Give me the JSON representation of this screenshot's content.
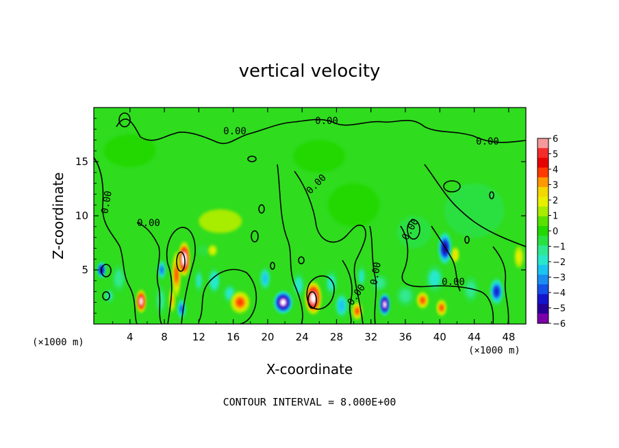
{
  "chart_data": {
    "type": "heatmap",
    "title": "vertical velocity",
    "xlabel": "X-coordinate",
    "ylabel": "Z-coordinate",
    "x_unit_label": "(×1000 m)",
    "xlim": [
      -0.2,
      50.0
    ],
    "ylim": [
      0,
      20
    ],
    "x_ticks": [
      4,
      8,
      12,
      16,
      20,
      24,
      28,
      32,
      36,
      40,
      44,
      48
    ],
    "y_ticks": [
      5,
      10,
      15
    ],
    "colorbar": {
      "min": -6,
      "max": 6,
      "tick_labels": [
        "6",
        "5",
        "4",
        "3",
        "2",
        "1",
        "0",
        "−1",
        "−2",
        "−3",
        "−4",
        "−5",
        "−6"
      ],
      "colors": [
        "#f59a9a",
        "#f32c2c",
        "#e60000",
        "#ff3a00",
        "#ff9900",
        "#f2d800",
        "#e8f000",
        "#a8ec00",
        "#5ae000",
        "#22d800",
        "#2ae040",
        "#30e890",
        "#28e8cc",
        "#1cc4f0",
        "#1a8ef0",
        "#1450e8",
        "#1414cc",
        "#260096",
        "#7a00a8"
      ]
    },
    "contour_interval": "CONTOUR INTERVAL = 8.000E+00",
    "contour_labels": [
      "0.00",
      "0.00",
      "0.00",
      "0.00",
      "0.00",
      "0.00",
      "0.00",
      "0.00",
      "0.00",
      "0.00"
    ],
    "cells": [
      {
        "x": 0.7,
        "z": 5.0,
        "w": 1.0,
        "h": 1.6,
        "v": -5.5
      },
      {
        "x": 1.6,
        "z": 2.6,
        "w": 1.1,
        "h": 1.3,
        "v": -2.2
      },
      {
        "x": 2.7,
        "z": 4.2,
        "w": 1.6,
        "h": 2.6,
        "v": -1.5
      },
      {
        "x": 5.3,
        "z": 2.1,
        "w": 1.0,
        "h": 2.1,
        "v": 6.5
      },
      {
        "x": 7.6,
        "z": 2.2,
        "w": 1.2,
        "h": 2.8,
        "v": -1.8
      },
      {
        "x": 7.7,
        "z": 5.0,
        "w": 0.9,
        "h": 1.9,
        "v": -4.3
      },
      {
        "x": 8.9,
        "z": 2.2,
        "w": 0.6,
        "h": 2.2,
        "v": 3.2
      },
      {
        "x": 9.4,
        "z": 4.6,
        "w": 0.9,
        "h": 4.2,
        "v": 4.0
      },
      {
        "x": 10.3,
        "z": 6.0,
        "w": 1.2,
        "h": 3.2,
        "v": 7.5
      },
      {
        "x": 10.0,
        "z": 1.4,
        "w": 1.0,
        "h": 2.0,
        "v": -4.0
      },
      {
        "x": 12.0,
        "z": 4.0,
        "w": 0.9,
        "h": 2.2,
        "v": -2.0
      },
      {
        "x": 12.5,
        "z": 6.8,
        "w": 1.3,
        "h": 1.0,
        "v": -1.3
      },
      {
        "x": 13.8,
        "z": 4.0,
        "w": 1.4,
        "h": 2.4,
        "v": -2.5
      },
      {
        "x": 13.6,
        "z": 6.8,
        "w": 1.0,
        "h": 1.0,
        "v": 1.8
      },
      {
        "x": 15.6,
        "z": 2.8,
        "w": 1.6,
        "h": 1.8,
        "v": -2.0
      },
      {
        "x": 16.8,
        "z": 2.0,
        "w": 2.2,
        "h": 2.0,
        "v": 4.2
      },
      {
        "x": 14.5,
        "z": 9.5,
        "w": 5.0,
        "h": 2.2,
        "v": 1.1
      },
      {
        "x": 19.7,
        "z": 4.2,
        "w": 1.3,
        "h": 2.2,
        "v": -3.0
      },
      {
        "x": 21.8,
        "z": 2.0,
        "w": 2.3,
        "h": 2.2,
        "v": -6.5
      },
      {
        "x": 23.6,
        "z": 3.6,
        "w": 1.4,
        "h": 2.4,
        "v": -2.2
      },
      {
        "x": 25.3,
        "z": 2.4,
        "w": 1.8,
        "h": 3.0,
        "v": 7.0
      },
      {
        "x": 27.4,
        "z": 3.8,
        "w": 1.4,
        "h": 2.4,
        "v": -2.4
      },
      {
        "x": 28.6,
        "z": 1.7,
        "w": 1.6,
        "h": 2.4,
        "v": -3.4
      },
      {
        "x": 30.4,
        "z": 1.2,
        "w": 1.1,
        "h": 1.6,
        "v": 3.6
      },
      {
        "x": 30.9,
        "z": 4.4,
        "w": 1.0,
        "h": 2.0,
        "v": -2.0
      },
      {
        "x": 33.6,
        "z": 1.8,
        "w": 1.2,
        "h": 2.2,
        "v": -6.5
      },
      {
        "x": 33.0,
        "z": 3.8,
        "w": 2.0,
        "h": 1.6,
        "v": -1.5
      },
      {
        "x": 36.0,
        "z": 2.6,
        "w": 2.2,
        "h": 2.0,
        "v": -1.8
      },
      {
        "x": 38.0,
        "z": 2.2,
        "w": 1.3,
        "h": 1.5,
        "v": 3.8
      },
      {
        "x": 40.2,
        "z": 1.5,
        "w": 1.1,
        "h": 1.5,
        "v": 4.2
      },
      {
        "x": 39.4,
        "z": 4.2,
        "w": 2.2,
        "h": 2.6,
        "v": -2.0
      },
      {
        "x": 40.6,
        "z": 7.0,
        "w": 1.6,
        "h": 3.2,
        "v": -5.5
      },
      {
        "x": 41.8,
        "z": 6.4,
        "w": 0.8,
        "h": 1.4,
        "v": 2.5
      },
      {
        "x": 43.6,
        "z": 3.2,
        "w": 1.8,
        "h": 2.4,
        "v": -1.6
      },
      {
        "x": 46.6,
        "z": 3.0,
        "w": 1.6,
        "h": 2.6,
        "v": -5.2
      },
      {
        "x": 49.2,
        "z": 6.2,
        "w": 1.0,
        "h": 2.0,
        "v": 2.0
      },
      {
        "x": 44.0,
        "z": 10.5,
        "w": 7.0,
        "h": 5.0,
        "v": -1.0
      },
      {
        "x": 30.0,
        "z": 11.0,
        "w": 6.0,
        "h": 4.0,
        "v": -0.6
      },
      {
        "x": 37.0,
        "z": 8.5,
        "w": 4.0,
        "h": 3.0,
        "v": -1.1
      },
      {
        "x": 4.0,
        "z": 16.0,
        "w": 6.0,
        "h": 3.0,
        "v": -0.6
      },
      {
        "x": 26.0,
        "z": 15.5,
        "w": 6.0,
        "h": 3.0,
        "v": -0.5
      }
    ]
  }
}
